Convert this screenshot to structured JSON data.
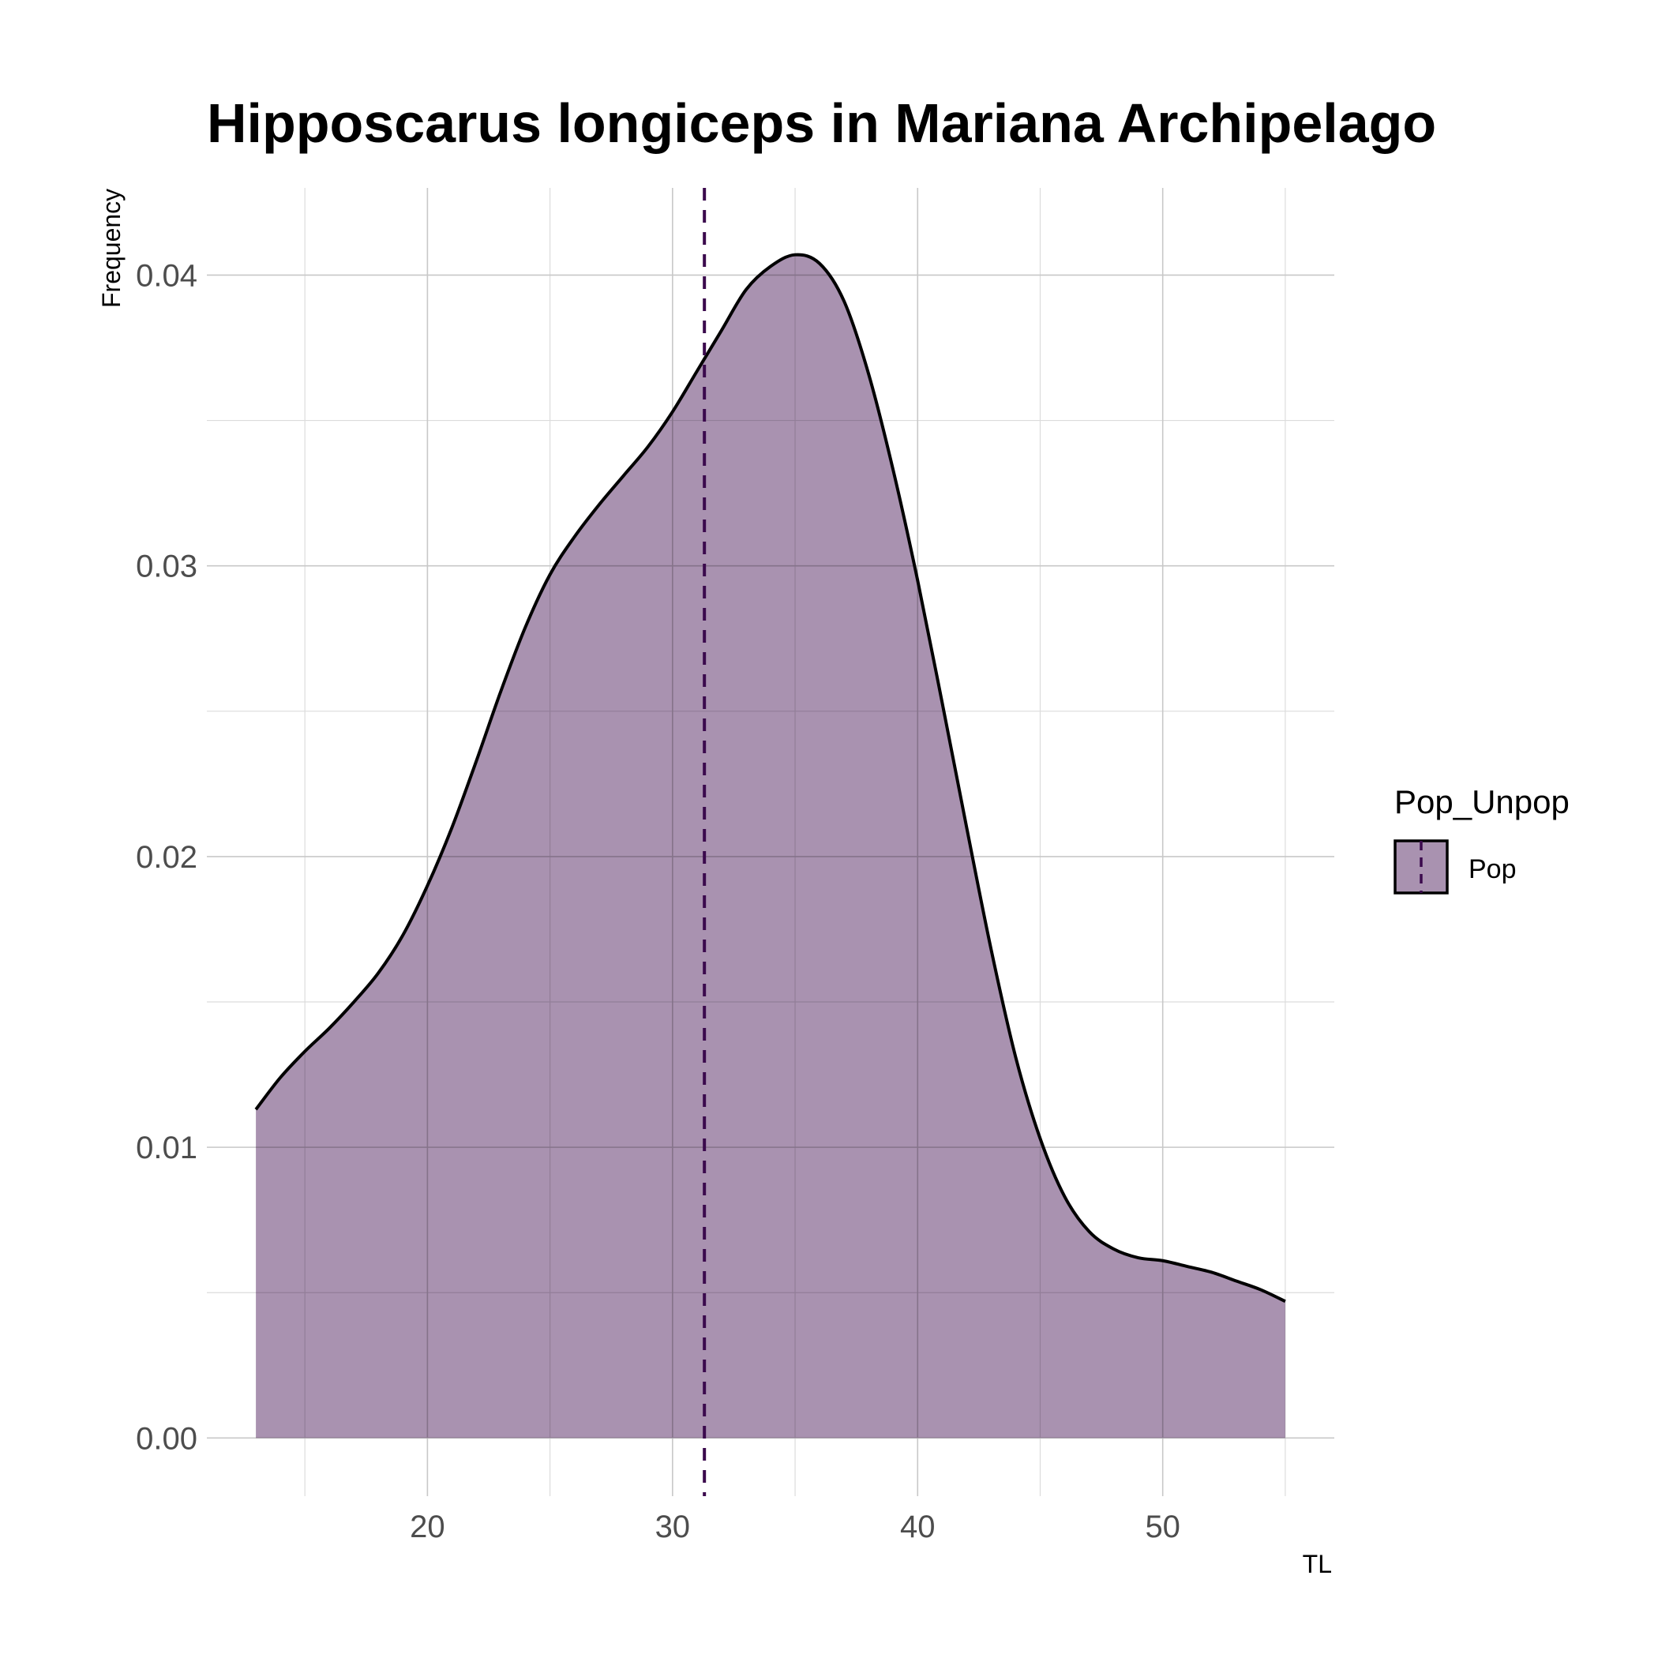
{
  "chart_data": {
    "type": "area",
    "title": "Hipposcarus longiceps in Mariana Archipelago",
    "xlabel": "TL",
    "ylabel": "Frequency",
    "xlim": [
      11,
      57
    ],
    "ylim": [
      -0.002,
      0.043
    ],
    "x_ticks": [
      20,
      30,
      40,
      50
    ],
    "x_tick_labels": [
      "20",
      "30",
      "40",
      "50"
    ],
    "x_minor_ticks": [
      15,
      25,
      35,
      45,
      55
    ],
    "y_ticks": [
      0.0,
      0.01,
      0.02,
      0.03,
      0.04
    ],
    "y_tick_labels": [
      "0.00",
      "0.01",
      "0.02",
      "0.03",
      "0.04"
    ],
    "y_minor_ticks": [
      0.005,
      0.015,
      0.025,
      0.035
    ],
    "grid": true,
    "series": [
      {
        "name": "Pop",
        "fill": "#a992b0",
        "stroke": "#000000",
        "x": [
          13,
          14,
          15,
          16,
          17,
          18,
          19,
          20,
          21,
          22,
          23,
          24,
          25,
          26,
          27,
          28,
          29,
          30,
          31,
          32,
          33,
          34,
          35,
          36,
          37,
          38,
          39,
          40,
          41,
          42,
          43,
          44,
          45,
          46,
          47,
          48,
          49,
          50,
          51,
          52,
          53,
          54,
          55
        ],
        "y": [
          0.0113,
          0.0124,
          0.0133,
          0.0141,
          0.015,
          0.016,
          0.0173,
          0.019,
          0.021,
          0.0233,
          0.0257,
          0.0279,
          0.0297,
          0.031,
          0.0321,
          0.0331,
          0.0341,
          0.0353,
          0.0367,
          0.0381,
          0.0395,
          0.0403,
          0.0407,
          0.0404,
          0.0391,
          0.0366,
          0.0333,
          0.0295,
          0.0253,
          0.021,
          0.0168,
          0.0131,
          0.0103,
          0.0083,
          0.0071,
          0.0065,
          0.0062,
          0.0061,
          0.0059,
          0.0057,
          0.0054,
          0.0051,
          0.0047
        ]
      }
    ],
    "vline": {
      "x": 31.3,
      "style": "dashed",
      "color": "#3b0a4d"
    },
    "legend": {
      "position": "right",
      "title": "Pop_Unpop",
      "items": [
        {
          "label": "Pop",
          "fill": "#a992b0"
        }
      ]
    }
  }
}
